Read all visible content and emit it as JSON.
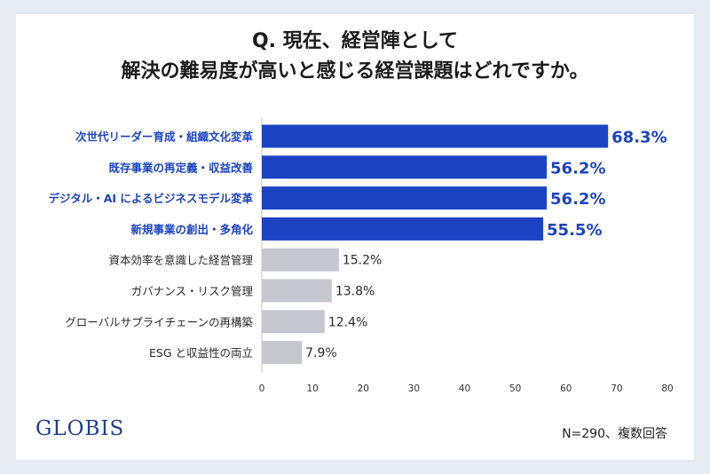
{
  "title_line1": "Q. 現在、経営陣として",
  "title_line2": "解決の難易度が高いと感じる経営課題はどれですか。",
  "brand": "GLOBIS",
  "note": "N=290、複数回答",
  "colors": {
    "highlight": "#1c44c2",
    "muted": "#c5c8cf",
    "highlight_text": "#1c44c2",
    "muted_text": "#2a2a2a"
  },
  "chart_data": {
    "type": "bar",
    "orientation": "horizontal",
    "categories": [
      "次世代リーダー育成・組織文化変革",
      "既存事業の再定義・収益改善",
      "デジタル・AI によるビジネスモデル変革",
      "新規事業の創出・多角化",
      "資本効率を意識した経営管理",
      "ガバナンス・リスク管理",
      "グローバルサプライチェーンの再構築",
      "ESG と収益性の両立"
    ],
    "values": [
      68.3,
      56.2,
      56.2,
      55.5,
      15.2,
      13.8,
      12.4,
      7.9
    ],
    "value_labels": [
      "68.3%",
      "56.2%",
      "56.2%",
      "55.5%",
      "15.2%",
      "13.8%",
      "12.4%",
      "7.9%"
    ],
    "highlighted": [
      true,
      true,
      true,
      true,
      false,
      false,
      false,
      false
    ],
    "xlim": [
      0,
      80
    ],
    "xticks": [
      0,
      10,
      20,
      30,
      40,
      50,
      60,
      70,
      80
    ],
    "grid": false,
    "legend": "none"
  }
}
